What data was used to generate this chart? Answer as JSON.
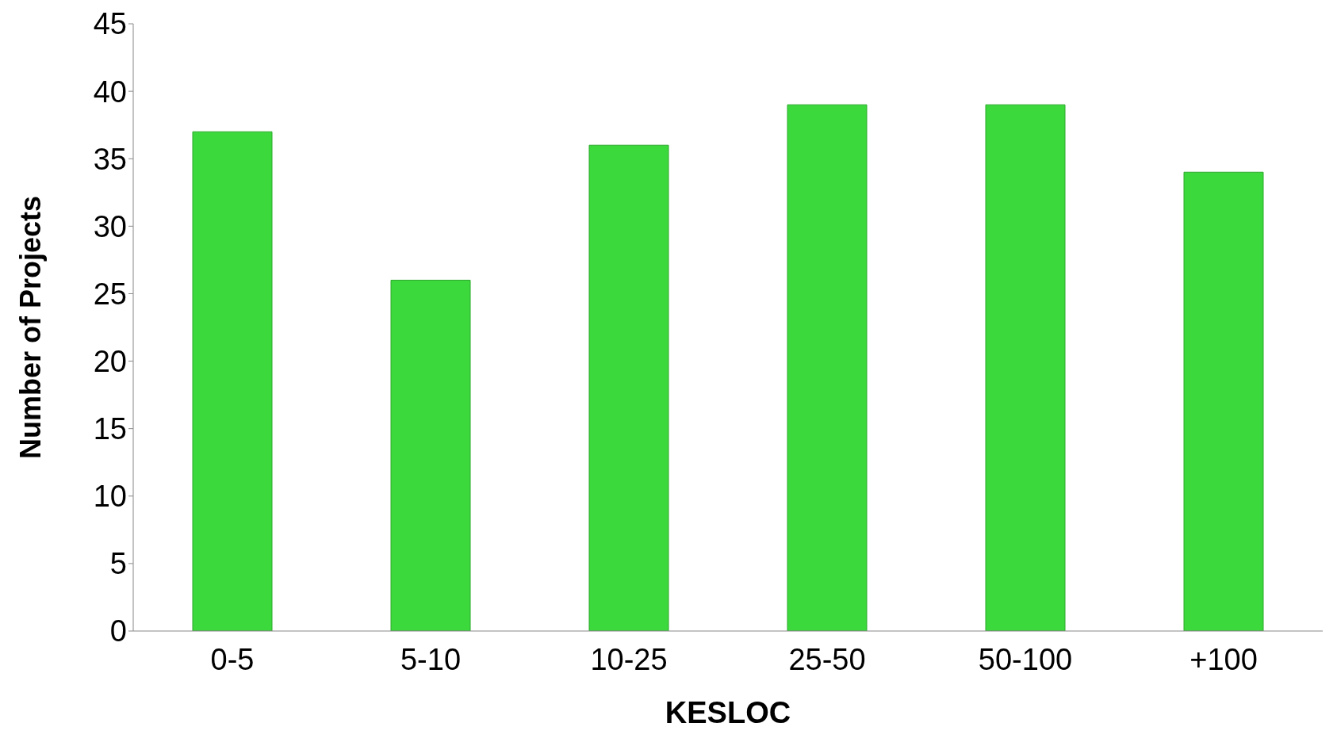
{
  "chart_data": {
    "type": "bar",
    "xlabel": "KESLOC",
    "ylabel": "Number of Projects",
    "categories": [
      "0-5",
      "5-10",
      "10-25",
      "25-50",
      "50-100",
      "+100"
    ],
    "values": [
      37,
      26,
      36,
      39,
      39,
      34
    ],
    "color": "#3cd93c",
    "ylim": [
      0,
      45
    ],
    "yticks": [
      0,
      5,
      10,
      15,
      20,
      25,
      30,
      35,
      40,
      45
    ],
    "grid": false,
    "legend": false
  }
}
